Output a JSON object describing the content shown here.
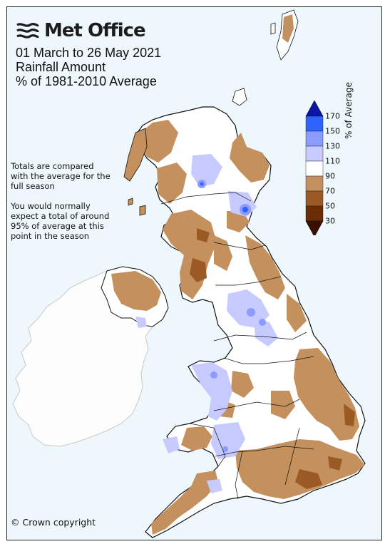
{
  "brand": {
    "name": "Met Office"
  },
  "title": {
    "line1": "01 March to 26 May 2021",
    "line2": "Rainfall Amount",
    "line3": "% of 1981-2010 Average"
  },
  "note": {
    "para1": "Totals are compared with the average for the full season",
    "para2": "You would normally expect a total of around 95% of average at this point in the season"
  },
  "legend": {
    "title": "% of Average",
    "ticks": [
      "170",
      "150",
      "130",
      "110",
      "90",
      "70",
      "50",
      "30"
    ],
    "colors": [
      "#0b15a8",
      "#2e63ff",
      "#8c9bff",
      "#c6caff",
      "#ffffff",
      "#c4915e",
      "#9b5a23",
      "#6b2d06",
      "#3b0f00"
    ]
  },
  "map_colors": {
    "sea": "#eef7fb",
    "ireland_land": "#fdfdfd",
    "coast": "#111111",
    "ireland_coast": "#c8c8c8"
  },
  "footer": {
    "copyright": "© Crown copyright"
  }
}
